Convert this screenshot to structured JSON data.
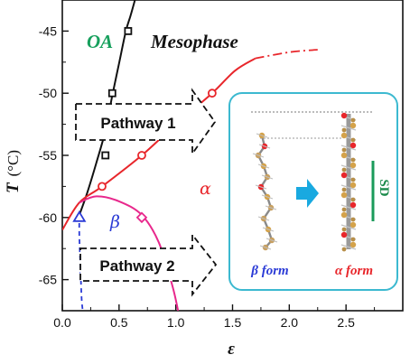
{
  "chart_data": {
    "type": "line",
    "title": "",
    "xlabel": "ε",
    "ylabel_symbol": "T",
    "ylabel_unit": "(°C)",
    "xlim": [
      0.0,
      3.0
    ],
    "ylim": [
      -67.5,
      -42.5
    ],
    "x_ticks": [
      0.0,
      0.5,
      1.0,
      1.5,
      2.0,
      2.5
    ],
    "y_ticks": [
      -45,
      -50,
      -55,
      -60,
      -65
    ],
    "grid": false,
    "series": [
      {
        "name": "",
        "color": "#111111",
        "curve": [
          [
            0.15,
            -59.8
          ],
          [
            0.22,
            -58.0
          ],
          [
            0.3,
            -55.6
          ],
          [
            0.38,
            -53.0
          ],
          [
            0.44,
            -50.2
          ],
          [
            0.5,
            -47.6
          ],
          [
            0.56,
            -45.0
          ],
          [
            0.6,
            -43.8
          ],
          [
            0.64,
            -42.5
          ]
        ],
        "markers": [
          [
            0.38,
            -55.0
          ],
          [
            0.44,
            -50.0
          ],
          [
            0.58,
            -45.0
          ]
        ],
        "marker": "square"
      },
      {
        "name": "",
        "color": "#e8262b",
        "curve": [
          [
            0.0,
            -61.0
          ],
          [
            0.15,
            -58.8
          ],
          [
            0.35,
            -57.5
          ],
          [
            0.7,
            -55.0
          ],
          [
            1.0,
            -52.5
          ],
          [
            1.32,
            -50.0
          ],
          [
            1.52,
            -48.2
          ],
          [
            1.7,
            -47.2
          ]
        ],
        "dashed_curve": [
          [
            1.7,
            -47.2
          ],
          [
            2.0,
            -46.7
          ],
          [
            2.25,
            -46.5
          ]
        ],
        "markers": [
          [
            0.35,
            -57.5
          ],
          [
            0.7,
            -55.0
          ],
          [
            1.32,
            -50.0
          ]
        ],
        "marker": "circle"
      },
      {
        "name": "",
        "color": "#e8288c",
        "curve": [
          [
            0.15,
            -58.8
          ],
          [
            0.3,
            -58.3
          ],
          [
            0.5,
            -58.7
          ],
          [
            0.7,
            -59.8
          ],
          [
            0.85,
            -62.0
          ],
          [
            0.97,
            -65.5
          ],
          [
            1.02,
            -67.5
          ]
        ],
        "markers": [
          [
            0.7,
            -60.0
          ]
        ],
        "marker": "diamond"
      },
      {
        "name": "",
        "color": "#2b3bd6",
        "dashed_curve": [
          [
            0.15,
            -59.8
          ],
          [
            0.15,
            -61.5
          ],
          [
            0.16,
            -64.0
          ],
          [
            0.17,
            -66.5
          ],
          [
            0.18,
            -67.5
          ]
        ],
        "markers": [
          [
            0.15,
            -60.0
          ]
        ],
        "marker": "triangle"
      }
    ],
    "annotations": {
      "oa": "OA",
      "mesophase": "Mesophase",
      "alpha": "α",
      "beta": "β",
      "pathway_1": "Pathway 1",
      "pathway_2": "Pathway 2",
      "beta_form": "β form",
      "alpha_form": "α form",
      "sd": "SD"
    },
    "colors": {
      "oa": "#17a05d",
      "alpha": "#e8262b",
      "beta": "#2b3bd6",
      "inset_border": "#3cb9d0",
      "inset_arrow": "#19a9e0",
      "sd_arrow": "#1a9a5a"
    }
  }
}
